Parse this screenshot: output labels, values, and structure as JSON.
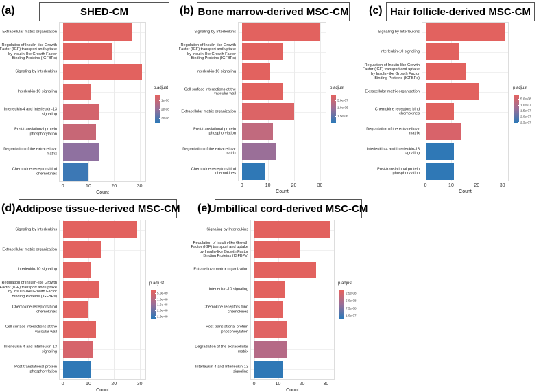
{
  "chart_data": [
    {
      "type": "barh",
      "label": "(a)",
      "title": "SHED-CM",
      "xlabel": "Count",
      "legend_title": "p.adjust",
      "categories": [
        "Extracellular matrix organization",
        "Regulation of Insulin-like Growth Factor (IGF) transport and uptake by Insulin-like Growth Factor Binding Proteins (IGFBPs)",
        "Signaling by Interleukins",
        "Interleukin-10 signaling",
        "Interleukin-4 and Interleukin-13 signaling",
        "Post-translational protein phosphorylation",
        "Degradation of the extracellular matrix",
        "Chemokine receptors bind chemokines"
      ],
      "values": [
        27,
        19,
        31,
        11,
        14,
        13,
        14,
        10
      ],
      "colors": [
        "#e2625f",
        "#e2625f",
        "#e2625f",
        "#df6362",
        "#d4646c",
        "#c76776",
        "#8f71a0",
        "#3c78b5"
      ],
      "xlim": [
        -1.5,
        32.5
      ],
      "xticks": [
        0,
        10,
        20,
        30
      ],
      "clim": [
        3.6e-09,
        3.56e-08
      ],
      "cticks": [
        {
          "value": 1e-08,
          "label": "1e-08"
        },
        {
          "value": 2e-08,
          "label": "2e-08"
        },
        {
          "value": 3e-08,
          "label": "3e-08"
        }
      ]
    },
    {
      "type": "barh",
      "label": "(b)",
      "title": "Bone marrow-derived MSC-CM",
      "xlabel": "Count",
      "legend_title": "p.adjust",
      "categories": [
        "Signaling by Interleukins",
        "Regulation of Insulin-like Growth Factor (IGF) transport and uptake by Insulin-like Growth Factor Binding Proteins (IGFBPs)",
        "Interleukin-10 signaling",
        "Cell surface interactions at the vascular wall",
        "Extracellular matrix organization",
        "Post-translational protein phosphorylation",
        "Degradation of the extracellular matrix",
        "Chemokine receptors bind chemokines"
      ],
      "values": [
        30,
        16,
        11,
        16,
        20,
        12,
        13,
        9
      ],
      "colors": [
        "#e2625f",
        "#e2625f",
        "#e2625f",
        "#e1625f",
        "#dc6466",
        "#c16a7e",
        "#9a6f98",
        "#2f78b6"
      ],
      "xlim": [
        -1.5,
        32.5
      ],
      "xticks": [
        0,
        10,
        20,
        30
      ],
      "clim": [
        1.4e-07,
        1.95e-06
      ],
      "cticks": [
        {
          "value": 5e-07,
          "label": "5.0e-07"
        },
        {
          "value": 1e-06,
          "label": "1.0e-06"
        },
        {
          "value": 1.5e-06,
          "label": "1.5e-06"
        }
      ]
    },
    {
      "type": "barh",
      "label": "(c)",
      "title": "Hair follicle-derived MSC-CM",
      "xlabel": "Count",
      "legend_title": "p.adjust",
      "categories": [
        "Signaling by Interleukins",
        "Interleukin-10 signaling",
        "Regulation of Insulin-like Growth Factor (IGF) transport and uptake by Insulin-like Growth Factor Binding Proteins (IGFBPs)",
        "Extracellular matrix organization",
        "Chemokine receptors bind chemokines",
        "Degradation of the extracellular matrix",
        "Interleukin-4 and Interleukin-13 signaling",
        "Post-translational protein phosphorylation"
      ],
      "values": [
        31,
        13,
        16,
        21,
        11,
        14,
        11,
        11
      ],
      "colors": [
        "#e2625f",
        "#e2625f",
        "#e2625f",
        "#e2625f",
        "#e0625f",
        "#d8636a",
        "#2f78b6",
        "#2f78b6"
      ],
      "xlim": [
        -1.5,
        32.5
      ],
      "xticks": [
        0,
        10,
        20,
        30
      ],
      "clim": [
        1.4e-08,
        2.56e-07
      ],
      "cticks": [
        {
          "value": 5e-08,
          "label": "5.0e-08"
        },
        {
          "value": 1e-07,
          "label": "1.0e-07"
        },
        {
          "value": 1.5e-07,
          "label": "1.5e-07"
        },
        {
          "value": 2e-07,
          "label": "2.0e-07"
        },
        {
          "value": 2.5e-07,
          "label": "2.5e-07"
        }
      ]
    },
    {
      "type": "barh",
      "label": "(d)",
      "title": "Addipose tissue-derived MSC-CM",
      "xlabel": "Count",
      "legend_title": "p.adjust",
      "categories": [
        "Signaling by Interleukins",
        "Extracellular matrix organization",
        "Interleukin-10 signaling",
        "Regulation of Insulin-like Growth Factor (IGF) transport and uptake by Insulin-like Growth Factor Binding Proteins (IGFBPs)",
        "Chemokine receptors bind chemokines",
        "Cell surface interactions at the vascular wall",
        "Interleukin-4 and Interleukin-13 signaling",
        "Post-translational protein phosphorylation"
      ],
      "values": [
        29,
        15,
        11,
        14,
        10,
        13,
        12,
        11
      ],
      "colors": [
        "#e2625f",
        "#e2625f",
        "#e2625f",
        "#e2625f",
        "#e2625f",
        "#e0625f",
        "#d6646b",
        "#2f78b6"
      ],
      "xlim": [
        -1.5,
        32.5
      ],
      "xticks": [
        0,
        10,
        20,
        30
      ],
      "clim": [
        2.5e-09,
        2.7e-08
      ],
      "cticks": [
        {
          "value": 5e-09,
          "label": "5.0e-09"
        },
        {
          "value": 1e-08,
          "label": "1.0e-08"
        },
        {
          "value": 1.5e-08,
          "label": "1.5e-08"
        },
        {
          "value": 2e-08,
          "label": "2.0e-08"
        },
        {
          "value": 2.5e-08,
          "label": "2.5e-08"
        }
      ]
    },
    {
      "type": "barh",
      "label": "(e)",
      "title": "Umbillical cord-derived MSC-CM",
      "xlabel": "Count",
      "legend_title": "p.adjust",
      "categories": [
        "Signaling by Interleukins",
        "Regulation of Insulin-like Growth Factor (IGF) transport and uptake by Insulin-like Growth Factor Binding Proteins (IGFBPs)",
        "Extracellular matrix organization",
        "Interleukin-10 signaling",
        "Chemokine receptors bind chemokines",
        "Post-translational protein phosphorylation",
        "Degradation of the extracellular matrix",
        "Interleukin-4 and Interleukin-13 signaling"
      ],
      "values": [
        32,
        19,
        26,
        13,
        12,
        14,
        14,
        12
      ],
      "colors": [
        "#e2625f",
        "#e2625f",
        "#e2625f",
        "#e2625f",
        "#e2625f",
        "#e06464",
        "#b56a86",
        "#2f78b6"
      ],
      "xlim": [
        -1.6,
        33.6
      ],
      "xticks": [
        0,
        10,
        20,
        30
      ],
      "clim": [
        1.5e-08,
        1.1e-07
      ],
      "cticks": [
        {
          "value": 2.5e-08,
          "label": "2.5e-08"
        },
        {
          "value": 5e-08,
          "label": "5.0e-08"
        },
        {
          "value": 7.5e-08,
          "label": "7.5e-08"
        },
        {
          "value": 1e-07,
          "label": "1.0e-07"
        }
      ]
    }
  ]
}
